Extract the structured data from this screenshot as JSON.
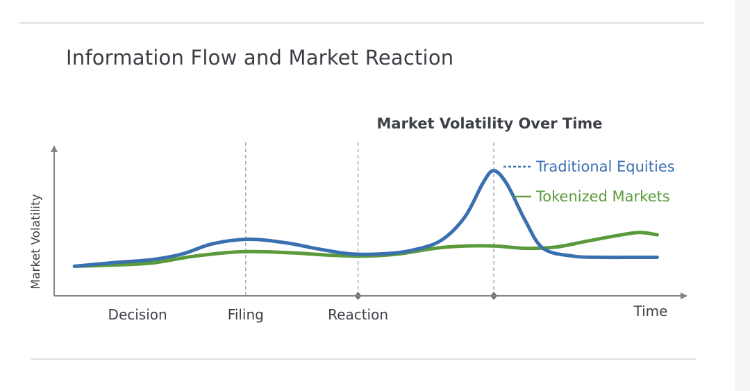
{
  "page": {
    "title": "Information Flow and Market Reaction"
  },
  "chart_data": {
    "type": "line",
    "title": "Market Volatility Over Time",
    "xlabel": "Time",
    "ylabel": "Market Volatility",
    "xlim": [
      0,
      100
    ],
    "ylim": [
      0,
      100
    ],
    "grid": false,
    "legend_position": "top-right",
    "events": [
      {
        "label": "Decision",
        "x": 12.5,
        "marker": false,
        "dashed_line": false
      },
      {
        "label": "Filing",
        "x": 30.5,
        "marker": false,
        "dashed_line": true
      },
      {
        "label": "Reaction",
        "x": 49.2,
        "marker": true,
        "dashed_line": true
      },
      {
        "label": "",
        "x": 71.8,
        "marker": true,
        "dashed_line": true
      }
    ],
    "series": [
      {
        "name": "Traditional Equities",
        "color": "#3a6fb0",
        "x": [
          2,
          8,
          15,
          20,
          25,
          31,
          37,
          43,
          48,
          53,
          58,
          63,
          67,
          70,
          71.8,
          74,
          77,
          80,
          85,
          90,
          95,
          99
        ],
        "y": [
          9,
          12,
          15,
          20,
          29,
          33,
          30,
          24,
          20,
          20,
          23,
          32,
          53,
          83,
          94,
          82,
          50,
          25,
          18,
          17,
          17,
          17
        ]
      },
      {
        "name": "Tokenized Markets",
        "color": "#5b9a3b",
        "x": [
          2,
          8,
          15,
          22,
          30,
          38,
          44,
          50,
          56,
          62,
          67,
          72,
          77,
          82,
          87,
          92,
          96,
          99
        ],
        "y": [
          9,
          10,
          12,
          18,
          22,
          21,
          19,
          18,
          20,
          25,
          27,
          27,
          25,
          26,
          31,
          36,
          39,
          37
        ]
      }
    ]
  }
}
